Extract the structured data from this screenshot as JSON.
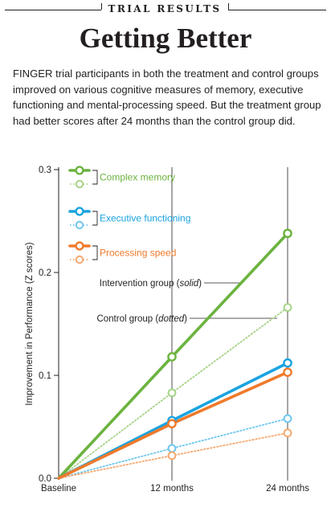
{
  "kicker": "TRIAL RESULTS",
  "title": "Getting Better",
  "deck": "FINGER trial participants in both the treatment and control groups improved on various cognitive measures of memory, executive functioning and mental-processing speed. But the treatment group had better scores after 24 months than the control group did.",
  "chart_data": {
    "type": "line",
    "categories": [
      "Baseline",
      "12 months",
      "24 months"
    ],
    "ylabel": "Improvement in Performance (Z scores)",
    "ylim": [
      0,
      0.3
    ],
    "yticks": [
      "0.0",
      "0.1",
      "0.2",
      "0.3"
    ],
    "grid": false,
    "legend_position": "top-left",
    "series": [
      {
        "name": "Complex memory",
        "group": "intervention",
        "style": "solid",
        "color": "#6bb33f",
        "values": [
          0,
          0.118,
          0.238
        ]
      },
      {
        "name": "Complex memory",
        "group": "control",
        "style": "dotted",
        "color": "#a6d388",
        "values": [
          0,
          0.083,
          0.166
        ]
      },
      {
        "name": "Executive functioning",
        "group": "intervention",
        "style": "solid",
        "color": "#1aa3e0",
        "values": [
          0,
          0.056,
          0.112
        ]
      },
      {
        "name": "Executive functioning",
        "group": "control",
        "style": "dotted",
        "color": "#6fc7ee",
        "values": [
          0,
          0.029,
          0.058
        ]
      },
      {
        "name": "Processing speed",
        "group": "intervention",
        "style": "solid",
        "color": "#ef7a2b",
        "values": [
          0,
          0.053,
          0.103
        ]
      },
      {
        "name": "Processing speed",
        "group": "control",
        "style": "dotted",
        "color": "#f5a870",
        "values": [
          0,
          0.022,
          0.044
        ]
      }
    ],
    "annotations": {
      "intervention": {
        "prefix": "Intervention group (",
        "em": "solid",
        "suffix": ")"
      },
      "control": {
        "prefix": "Control group (",
        "em": "dotted",
        "suffix": ")"
      }
    }
  }
}
